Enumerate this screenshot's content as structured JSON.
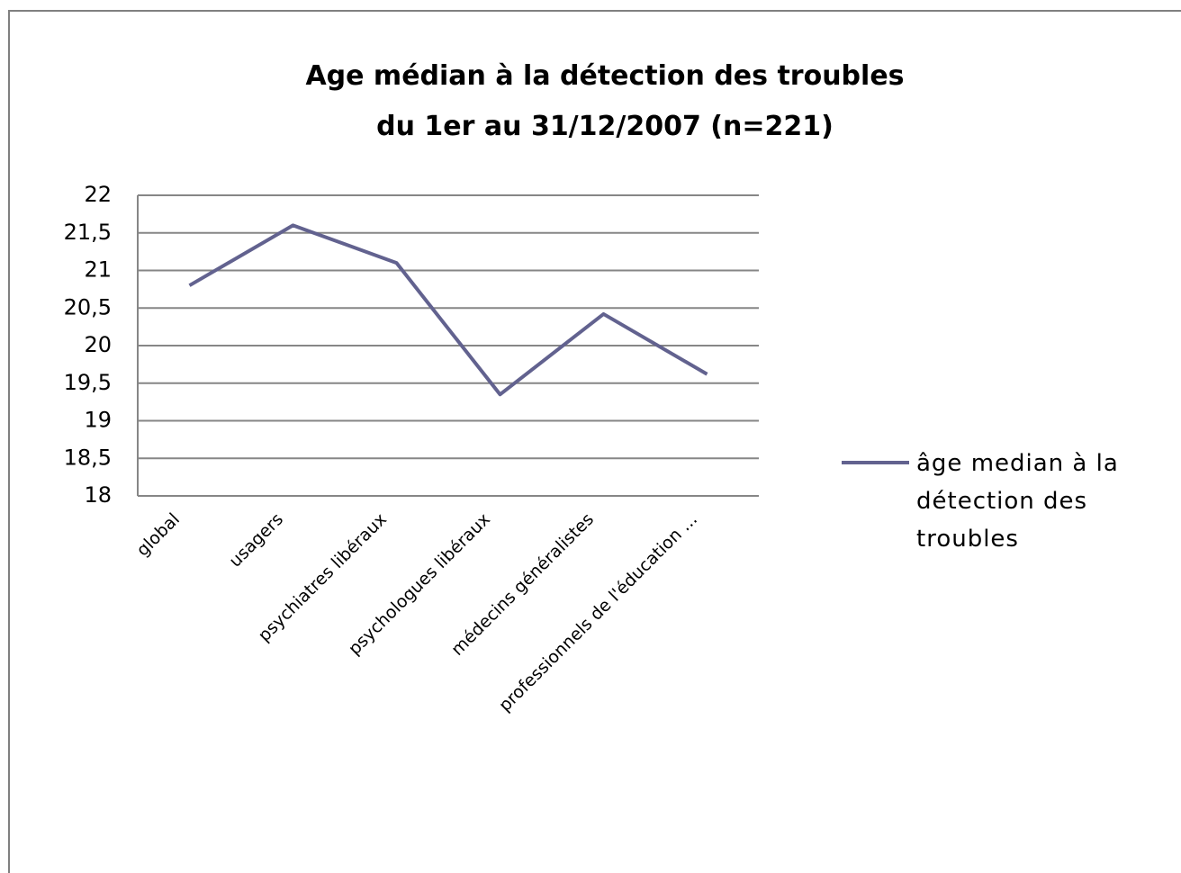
{
  "chart_data": {
    "type": "line",
    "title": [
      "Age médian à la détection des troubles",
      "du 1er au 31/12/2007 (n=221)"
    ],
    "categories": [
      "global",
      "usagers",
      "psychiatres libéraux",
      "psychologues libéraux",
      "médecins généralistes",
      "professionnels de l'éducation ..."
    ],
    "series": [
      {
        "name": "âge median à la détection des troubles",
        "color": "#62628f",
        "values": [
          20.8,
          21.6,
          21.1,
          19.35,
          20.42,
          19.62
        ]
      }
    ],
    "ylim": [
      18,
      22
    ],
    "yticks": [
      18,
      {
        "value": 18.5,
        "label": "18,5"
      },
      19,
      {
        "value": 19.5,
        "label": "19,5"
      },
      20,
      {
        "value": 20.5,
        "label": "20,5"
      },
      21,
      {
        "value": 21.5,
        "label": "21,5"
      },
      22
    ],
    "grid": true,
    "legend": "right"
  }
}
